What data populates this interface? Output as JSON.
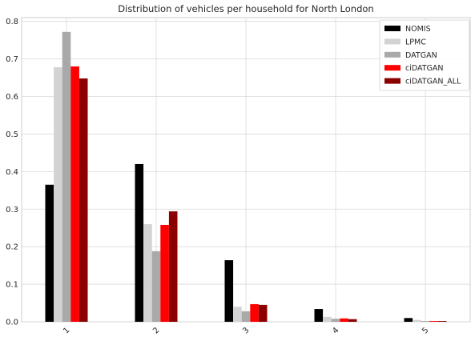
{
  "chart_data": {
    "type": "bar",
    "title": "Distribution of vehicles per household for North London",
    "xlabel": "",
    "ylabel": "",
    "categories": [
      "1",
      "2",
      "3",
      "4",
      "5"
    ],
    "ylim": [
      0,
      0.81
    ],
    "yticks": [
      0.0,
      0.1,
      0.2,
      0.3,
      0.4,
      0.5,
      0.6,
      0.7,
      0.8
    ],
    "ytick_labels": [
      "0.0",
      "0.1",
      "0.2",
      "0.3",
      "0.4",
      "0.5",
      "0.6",
      "0.7",
      "0.8"
    ],
    "grid": true,
    "legend_position": "top-right",
    "series": [
      {
        "name": "NOMIS",
        "color": "#000000",
        "values": [
          0.365,
          0.42,
          0.164,
          0.034,
          0.01
        ]
      },
      {
        "name": "LPMC",
        "color": "#d3d3d3",
        "values": [
          0.678,
          0.26,
          0.04,
          0.013,
          0.005
        ]
      },
      {
        "name": "DATGAN",
        "color": "#a9a9a9",
        "values": [
          0.772,
          0.188,
          0.028,
          0.008,
          0.002
        ]
      },
      {
        "name": "ciDATGAN",
        "color": "#ff0000",
        "values": [
          0.68,
          0.258,
          0.047,
          0.009,
          0.002
        ]
      },
      {
        "name": "ciDATGAN_ALL",
        "color": "#8b0000",
        "values": [
          0.648,
          0.294,
          0.045,
          0.007,
          0.002
        ]
      }
    ]
  }
}
